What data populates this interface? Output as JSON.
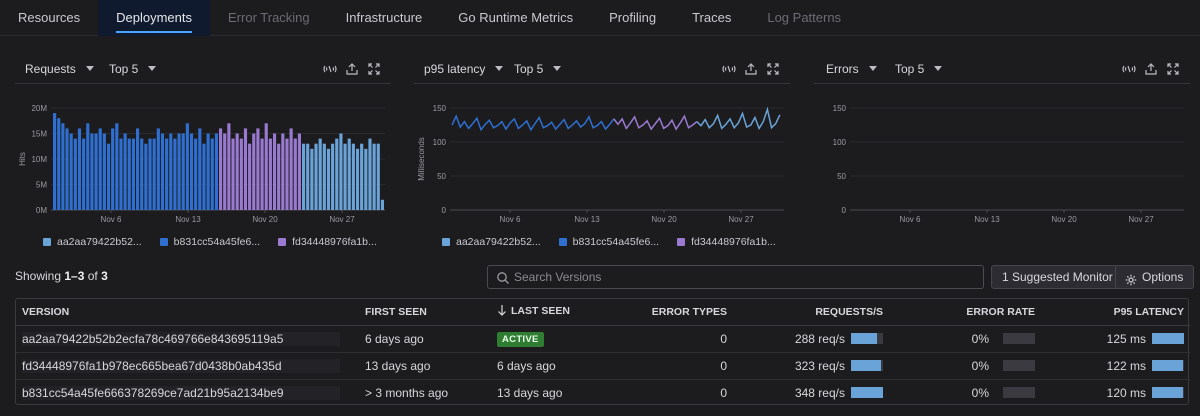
{
  "tabs": [
    {
      "label": "Resources",
      "state": "normal"
    },
    {
      "label": "Deployments",
      "state": "active"
    },
    {
      "label": "Error Tracking",
      "state": "disabled"
    },
    {
      "label": "Infrastructure",
      "state": "normal"
    },
    {
      "label": "Go Runtime Metrics",
      "state": "normal"
    },
    {
      "label": "Profiling",
      "state": "normal"
    },
    {
      "label": "Traces",
      "state": "normal"
    },
    {
      "label": "Log Patterns",
      "state": "disabled"
    }
  ],
  "colors": {
    "accent": "#4aa3ff",
    "series_a": "#6aa3d8",
    "series_b": "#2f6fd0",
    "series_c": "#9a7ad0",
    "active_badge": "#2e7d32"
  },
  "panels": [
    {
      "metric": "Requests",
      "top": "Top 5"
    },
    {
      "metric": "p95 latency",
      "top": "Top 5"
    },
    {
      "metric": "Errors",
      "top": "Top 5"
    }
  ],
  "panel_icons": [
    "activity-icon",
    "export-icon",
    "expand-icon"
  ],
  "legend": [
    "aa2aa79422b52...",
    "b831cc54a45fe6...",
    "fd34448976fa1b..."
  ],
  "chart_data": [
    {
      "type": "bar",
      "ylabel": "Hits",
      "yticks": [
        "0M",
        "5M",
        "10M",
        "15M",
        "20M"
      ],
      "ylim": [
        0,
        20
      ],
      "xticks": [
        "Nov 6",
        "Nov 13",
        "Nov 20",
        "Nov 27"
      ],
      "series": [
        {
          "name": "b831cc54a45fe6...",
          "values": [
            19,
            18,
            17,
            16,
            15,
            14,
            16,
            14,
            17,
            15,
            15,
            16,
            15,
            13,
            16,
            17,
            14,
            15,
            14,
            14,
            16,
            14,
            13,
            14,
            14,
            16,
            15,
            14,
            15,
            14,
            15,
            15,
            17,
            15,
            14,
            16,
            13,
            15,
            14,
            15
          ]
        },
        {
          "name": "fd34448976fa1b...",
          "values": [
            16,
            15,
            17,
            14,
            15,
            14,
            16,
            13,
            15,
            16,
            14,
            17,
            14,
            15,
            13,
            15,
            14,
            16,
            14,
            15
          ]
        },
        {
          "name": "aa2aa79422b52...",
          "values": [
            13,
            13,
            12,
            13,
            14,
            13,
            12,
            13,
            14,
            15,
            13,
            14,
            13,
            12,
            13,
            12,
            14,
            13,
            13,
            2
          ]
        }
      ]
    },
    {
      "type": "line",
      "ylabel": "Milliseconds",
      "yticks": [
        "0",
        "50",
        "100",
        "150"
      ],
      "ylim": [
        0,
        150
      ],
      "xticks": [
        "Nov 6",
        "Nov 13",
        "Nov 20",
        "Nov 27"
      ],
      "series": [
        {
          "name": "b831cc54a45fe6...",
          "values": [
            125,
            138,
            122,
            130,
            120,
            127,
            135,
            118,
            126,
            132,
            121,
            124,
            130,
            119,
            128,
            134,
            120,
            125,
            131,
            118,
            127,
            136,
            121,
            124,
            129,
            119,
            126,
            133,
            120,
            125,
            131,
            122,
            127,
            137,
            121,
            124,
            130,
            119,
            126,
            134
          ]
        },
        {
          "name": "fd34448976fa1b...",
          "values": [
            126,
            134,
            120,
            128,
            137,
            121,
            125,
            131,
            119,
            127,
            135,
            120,
            124,
            132,
            119,
            128,
            138,
            121,
            125,
            130
          ]
        },
        {
          "name": "aa2aa79422b52...",
          "values": [
            124,
            133,
            121,
            127,
            139,
            120,
            126,
            134,
            121,
            128,
            142,
            122,
            125,
            136,
            120,
            130,
            148,
            121,
            127,
            140
          ]
        }
      ]
    },
    {
      "type": "line",
      "ylabel": "",
      "yticks": [
        "0",
        "50",
        "100",
        "150"
      ],
      "ylim": [
        0,
        150
      ],
      "xticks": [
        "Nov 6",
        "Nov 13",
        "Nov 20",
        "Nov 27"
      ],
      "series": []
    }
  ],
  "showing": {
    "prefix": "Showing ",
    "range": "1–3",
    "mid": " of ",
    "total": "3"
  },
  "search": {
    "placeholder": "Search Versions"
  },
  "buttons": {
    "suggested": "1 Suggested Monitor",
    "options": "Options"
  },
  "table": {
    "headers": {
      "version": "VERSION",
      "first_seen": "FIRST SEEN",
      "last_seen": "LAST SEEN",
      "error_types": "ERROR TYPES",
      "requests": "REQUESTS/S",
      "error_rate": "ERROR RATE",
      "p95": "P95 LATENCY"
    },
    "rows": [
      {
        "version": "aa2aa79422b52b2ecfa78c469766e843695119a5",
        "first_seen": "6 days ago",
        "last_seen": "ACTIVE",
        "error_types": "0",
        "requests": "288 req/s",
        "req_fill": 0.82,
        "error_rate": "0%",
        "p95": "125 ms",
        "p95_fill": 1.0
      },
      {
        "version": "fd34448976fa1b978ec665bea67d0438b0ab435d",
        "first_seen": "13 days ago",
        "last_seen": "6 days ago",
        "error_types": "0",
        "requests": "323 req/s",
        "req_fill": 0.93,
        "error_rate": "0%",
        "p95": "122 ms",
        "p95_fill": 0.97
      },
      {
        "version": "b831cc54a45fe666378269ce7ad21b95a2134be9",
        "first_seen": "> 3 months ago",
        "last_seen": "13 days ago",
        "error_types": "0",
        "requests": "348 req/s",
        "req_fill": 1.0,
        "error_rate": "0%",
        "p95": "120 ms",
        "p95_fill": 0.96
      }
    ]
  }
}
